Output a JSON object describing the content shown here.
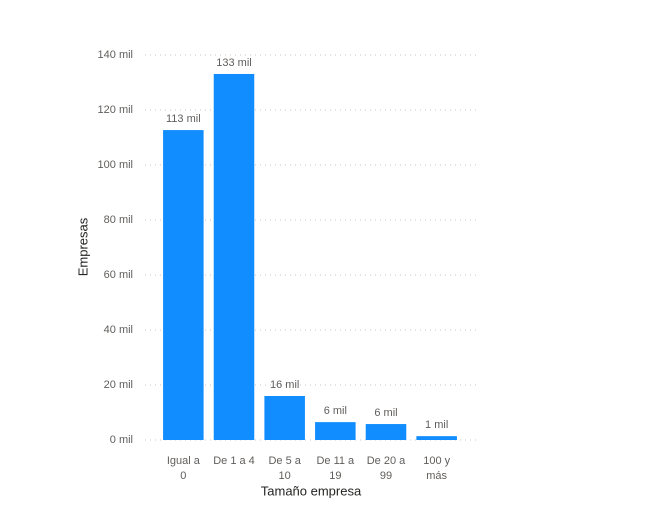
{
  "chart_data": {
    "type": "bar",
    "x_label": "Tamaño empresa",
    "y_label": "Empresas",
    "categories": [
      "Igual a 0",
      "De 1 a 4",
      "De 5 a 10",
      "De 11 a 19",
      "De 20 a 99",
      "100 y más"
    ],
    "values": [
      112.7,
      133.1,
      16,
      6.5,
      5.8,
      1.4
    ],
    "value_labels": [
      "113 mil",
      "133 mil",
      "16 mil",
      "6 mil",
      "6 mil",
      "1 mil"
    ],
    "color": "#118DFF",
    "ylim": [
      0,
      140
    ],
    "yticks": [
      {
        "value": 0,
        "label": "0 mil"
      },
      {
        "value": 20,
        "label": "20 mil"
      },
      {
        "value": 40,
        "label": "40 mil"
      },
      {
        "value": 60,
        "label": "60 mil"
      },
      {
        "value": 80,
        "label": "80 mil"
      },
      {
        "value": 100,
        "label": "100 mil"
      },
      {
        "value": 120,
        "label": "120 mil"
      },
      {
        "value": 140,
        "label": "140 mil"
      }
    ],
    "grid": true
  }
}
